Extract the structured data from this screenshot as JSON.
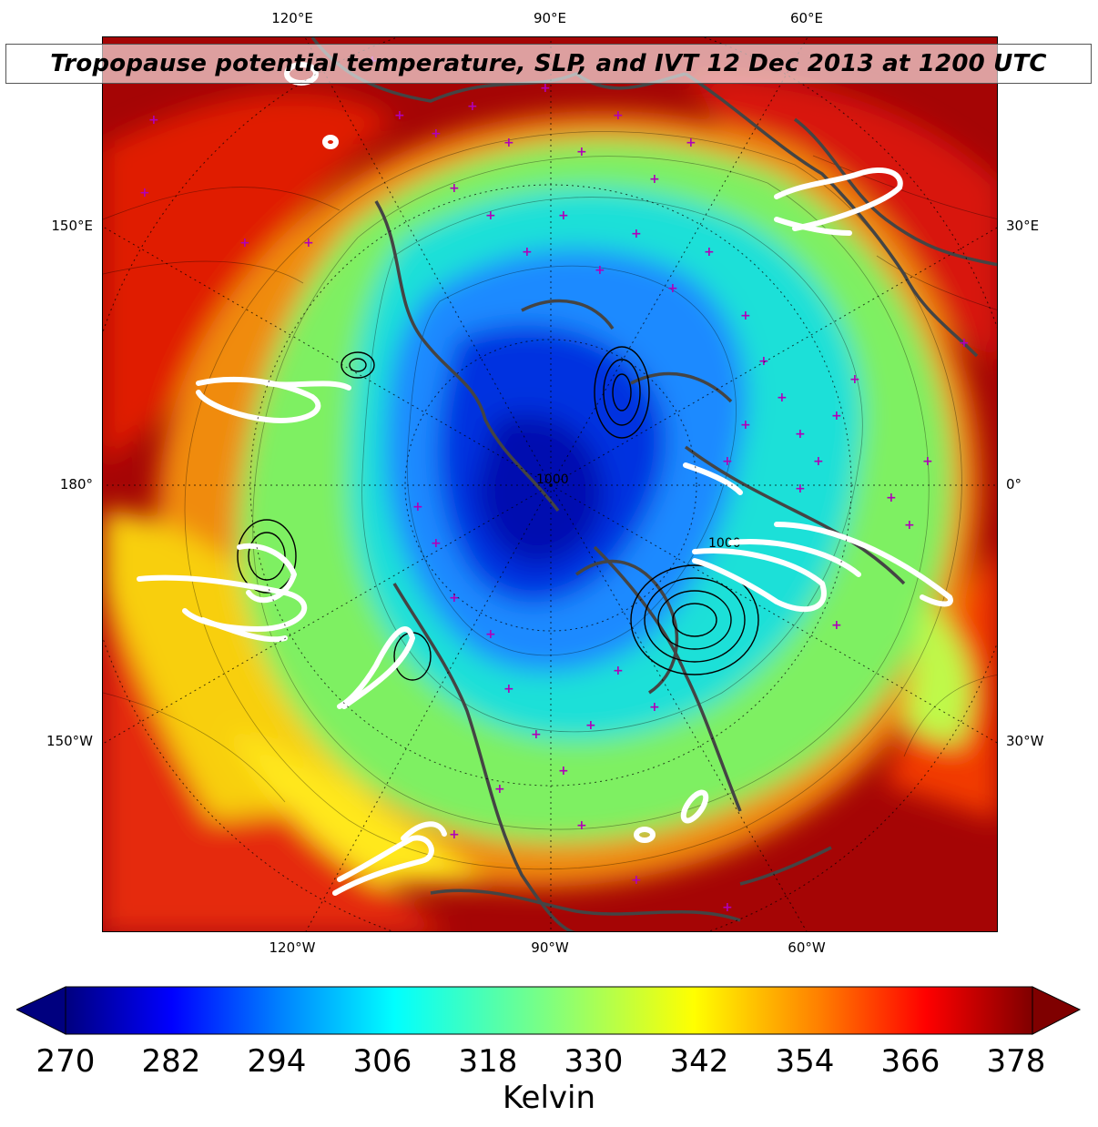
{
  "title": "Tropopause potential temperature, SLP, and IVT 12 Dec 2013 at 1200 UTC",
  "lon_labels": {
    "top": [
      "120°E",
      "90°E",
      "60°E"
    ],
    "bottom": [
      "120°W",
      "90°W",
      "60°W"
    ],
    "left": [
      "150°E",
      "180°",
      "150°W"
    ],
    "right": [
      "30°E",
      "0°",
      "30°W"
    ]
  },
  "slp_contour_labels": [
    "1000",
    "1000"
  ],
  "colorbar": {
    "ticks": [
      "270",
      "282",
      "294",
      "306",
      "318",
      "330",
      "342",
      "354",
      "366",
      "378"
    ],
    "label": "Kelvin",
    "colormap": "jet",
    "colors": [
      "#00007f",
      "#0000ff",
      "#007fff",
      "#00ffff",
      "#7fff7f",
      "#ffff00",
      "#ff7f00",
      "#ff0000",
      "#7f0000"
    ]
  },
  "overlay_colors": {
    "ivt_contour": "#ffffff",
    "slp_contour": "#000000",
    "coastline": "#444444",
    "station_marker": "#b000b8"
  }
}
